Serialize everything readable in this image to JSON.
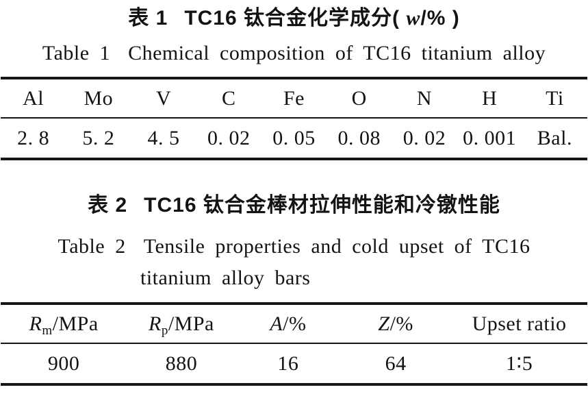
{
  "page": {
    "background": "#ffffff",
    "text_color": "#131313",
    "rule_color": "#161616"
  },
  "table1": {
    "caption_cn": {
      "label": "表 1",
      "text": "TC16 钛合金化学成分( ",
      "var": "w",
      "suffix": "/% )"
    },
    "caption_en": {
      "label": "Table 1",
      "text": "Chemical composition of TC16 titanium alloy"
    },
    "columns": [
      "Al",
      "Mo",
      "V",
      "C",
      "Fe",
      "O",
      "N",
      "H",
      "Ti"
    ],
    "values": [
      "2. 8",
      "5. 2",
      "4. 5",
      "0. 02",
      "0. 05",
      "0. 08",
      "0. 02",
      "0. 001",
      "Bal."
    ]
  },
  "table2": {
    "caption_cn": {
      "label": "表 2",
      "text": "TC16 钛合金棒材拉伸性能和冷镦性能"
    },
    "caption_en": {
      "label": "Table 2",
      "line1": "Tensile properties and cold upset of TC16",
      "line2": "titanium alloy bars"
    },
    "columns": [
      {
        "var": "R",
        "sub": "m",
        "rest": "/MPa"
      },
      {
        "var": "R",
        "sub": "p",
        "rest": "/MPa"
      },
      {
        "var": "A",
        "sub": "",
        "rest": "/%"
      },
      {
        "var": "Z",
        "sub": "",
        "rest": "/%"
      },
      {
        "var": "",
        "sub": "",
        "rest": "Upset ratio"
      }
    ],
    "values": [
      "900",
      "880",
      "16",
      "64",
      "1∶5"
    ]
  },
  "chart_data": [
    {
      "type": "table",
      "title": "表 1 TC16 钛合金化学成分( w/% ) / Table 1 Chemical composition of TC16 titanium alloy",
      "categories": [
        "Al",
        "Mo",
        "V",
        "C",
        "Fe",
        "O",
        "N",
        "H",
        "Ti"
      ],
      "values": [
        2.8,
        5.2,
        4.5,
        0.02,
        0.05,
        0.08,
        0.02,
        0.001,
        "Bal."
      ]
    },
    {
      "type": "table",
      "title": "表 2 TC16 钛合金棒材拉伸性能和冷镦性能 / Table 2 Tensile properties and cold upset of TC16 titanium alloy bars",
      "categories": [
        "Rm/MPa",
        "Rp/MPa",
        "A/%",
        "Z/%",
        "Upset ratio"
      ],
      "values": [
        900,
        880,
        16,
        64,
        "1:5"
      ]
    }
  ]
}
